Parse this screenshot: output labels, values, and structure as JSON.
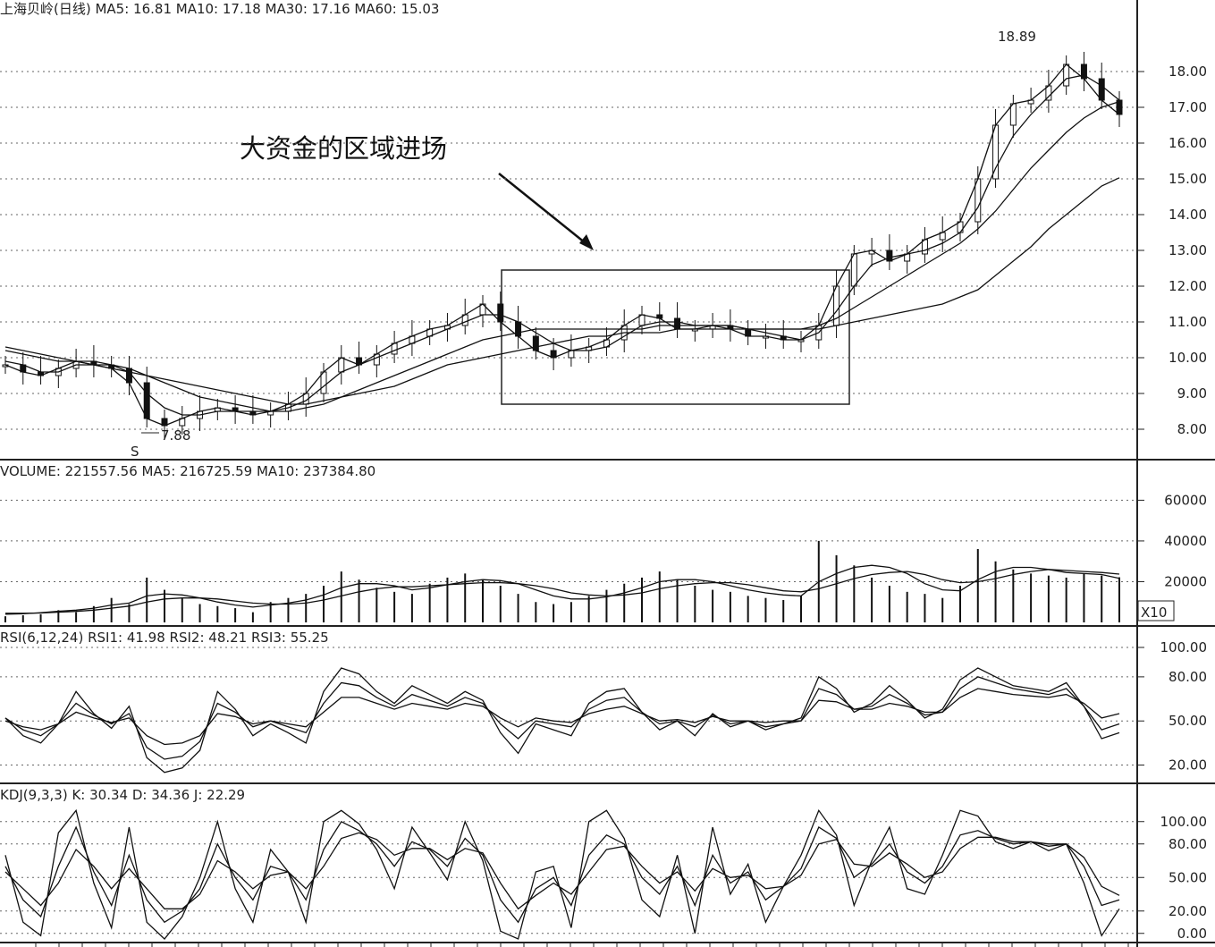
{
  "panels": {
    "price": {
      "header": "上海贝岭(日线) MA5: 16.81  MA10: 17.18  MA30: 17.16  MA60: 15.03",
      "yticks": [
        "18.00",
        "17.00",
        "16.00",
        "15.00",
        "14.00",
        "13.00",
        "12.00",
        "11.00",
        "10.00",
        "9.00",
        "8.00"
      ],
      "high_label": "18.89",
      "low_label": "7.88",
      "s_marker": "S",
      "annotation": "大资金的区域进场"
    },
    "volume": {
      "header": "VOLUME: 221557.56  MA5: 216725.59  MA10: 237384.80",
      "yticks": [
        "60000",
        "40000",
        "20000"
      ],
      "unit": "X10"
    },
    "rsi": {
      "header": "RSI(6,12,24)  RSI1: 41.98  RSI2: 48.21  RSI3: 55.25",
      "yticks": [
        "100.00",
        "80.00",
        "50.00",
        "20.00"
      ]
    },
    "kdj": {
      "header": "KDJ(9,3,3)  K: 30.34  D: 34.36  J: 22.29",
      "yticks": [
        "100.00",
        "80.00",
        "50.00",
        "20.00",
        "0.00"
      ]
    }
  },
  "chart_data": [
    {
      "type": "candlestick",
      "title": "上海贝岭(日线)",
      "ylim": [
        7.5,
        19.0
      ],
      "grid": true,
      "series": [
        {
          "name": "MA5",
          "values": [
            9.8,
            9.6,
            9.5,
            9.7,
            9.9,
            9.8,
            9.7,
            9.3,
            8.3,
            8.1,
            8.3,
            8.5,
            8.6,
            8.5,
            8.4,
            8.5,
            8.7,
            9.0,
            9.6,
            10.0,
            9.8,
            10.1,
            10.4,
            10.6,
            10.8,
            10.9,
            11.2,
            11.5,
            11.0,
            10.6,
            10.2,
            10.0,
            10.2,
            10.3,
            10.5,
            10.9,
            11.2,
            11.1,
            10.8,
            10.8,
            10.9,
            10.8,
            10.6,
            10.6,
            10.5,
            10.5,
            10.9,
            12.0,
            12.9,
            13.0,
            12.7,
            12.9,
            13.3,
            13.5,
            13.8,
            15.0,
            16.5,
            17.1,
            17.2,
            17.6,
            18.2,
            17.8,
            17.2,
            16.8
          ]
        },
        {
          "name": "MA10",
          "values": [
            9.9,
            9.8,
            9.6,
            9.6,
            9.8,
            9.8,
            9.8,
            9.6,
            9.0,
            8.6,
            8.4,
            8.4,
            8.5,
            8.5,
            8.5,
            8.5,
            8.6,
            8.8,
            9.2,
            9.6,
            9.8,
            10.0,
            10.2,
            10.4,
            10.6,
            10.8,
            11.0,
            11.2,
            11.2,
            11.0,
            10.7,
            10.4,
            10.2,
            10.2,
            10.3,
            10.6,
            10.9,
            11.0,
            11.0,
            10.9,
            10.9,
            10.9,
            10.8,
            10.7,
            10.6,
            10.5,
            10.7,
            11.3,
            12.0,
            12.6,
            12.8,
            12.9,
            13.0,
            13.2,
            13.5,
            14.2,
            15.3,
            16.2,
            16.8,
            17.3,
            17.8,
            17.9,
            17.6,
            17.2
          ]
        },
        {
          "name": "MA30",
          "values": [
            10.2,
            10.1,
            10.0,
            9.9,
            9.9,
            9.9,
            9.8,
            9.7,
            9.5,
            9.3,
            9.1,
            8.9,
            8.8,
            8.7,
            8.6,
            8.5,
            8.5,
            8.6,
            8.7,
            8.9,
            9.1,
            9.3,
            9.5,
            9.7,
            9.9,
            10.1,
            10.3,
            10.5,
            10.6,
            10.7,
            10.8,
            10.8,
            10.8,
            10.8,
            10.8,
            10.8,
            10.8,
            10.9,
            10.9,
            10.9,
            10.9,
            10.9,
            10.8,
            10.8,
            10.8,
            10.8,
            10.9,
            11.1,
            11.4,
            11.7,
            12.0,
            12.3,
            12.6,
            12.9,
            13.2,
            13.6,
            14.1,
            14.7,
            15.3,
            15.8,
            16.3,
            16.7,
            17.0,
            17.16
          ]
        },
        {
          "name": "MA60",
          "values": [
            10.3,
            10.2,
            10.1,
            10.0,
            9.9,
            9.8,
            9.7,
            9.6,
            9.5,
            9.4,
            9.3,
            9.2,
            9.1,
            9.0,
            8.9,
            8.8,
            8.7,
            8.7,
            8.8,
            8.9,
            9.0,
            9.1,
            9.2,
            9.4,
            9.6,
            9.8,
            9.9,
            10.0,
            10.1,
            10.2,
            10.3,
            10.4,
            10.5,
            10.6,
            10.6,
            10.7,
            10.7,
            10.7,
            10.8,
            10.8,
            10.8,
            10.8,
            10.8,
            10.8,
            10.8,
            10.8,
            10.8,
            10.9,
            11.0,
            11.1,
            11.2,
            11.3,
            11.4,
            11.5,
            11.7,
            11.9,
            12.3,
            12.7,
            13.1,
            13.6,
            14.0,
            14.4,
            14.8,
            15.03
          ]
        }
      ],
      "annotations": [
        "18.89",
        "7.88",
        "大资金的区域进场"
      ]
    },
    {
      "type": "bar",
      "title": "VOLUME",
      "ylim": [
        0,
        65000
      ],
      "values": [
        3000,
        3500,
        4000,
        6000,
        5000,
        8000,
        12000,
        9000,
        22000,
        16000,
        12000,
        9000,
        8000,
        7000,
        5000,
        10000,
        12000,
        14000,
        18000,
        25000,
        21000,
        17000,
        15000,
        14000,
        19000,
        22000,
        24000,
        21000,
        18000,
        14000,
        10000,
        9000,
        10000,
        13000,
        16000,
        19000,
        22000,
        25000,
        21000,
        18000,
        16000,
        15000,
        13000,
        12000,
        11000,
        13000,
        40000,
        33000,
        28000,
        22000,
        18000,
        15000,
        14000,
        12000,
        18000,
        36000,
        30000,
        26000,
        24000,
        23000,
        22000,
        24000,
        23000,
        22156
      ],
      "series": [
        {
          "name": "MA5",
          "values": [
            4000,
            4200,
            4800,
            5500,
            6000,
            7000,
            8500,
            9500,
            13000,
            14000,
            13500,
            12000,
            10000,
            8500,
            7500,
            8500,
            9500,
            11000,
            13500,
            17000,
            19000,
            19000,
            18000,
            16000,
            17000,
            18500,
            20000,
            21000,
            20500,
            19000,
            16000,
            13000,
            11500,
            11500,
            12500,
            14500,
            17000,
            20000,
            21000,
            21000,
            20000,
            18000,
            16000,
            14500,
            13500,
            13000,
            20000,
            24000,
            27000,
            28000,
            27000,
            24000,
            19000,
            16000,
            15500,
            21000,
            25000,
            27000,
            27000,
            26000,
            24500,
            24000,
            23500,
            21673
          ]
        },
        {
          "name": "MA10",
          "values": [
            4500,
            4500,
            4600,
            5000,
            5400,
            6000,
            7000,
            8000,
            10000,
            11500,
            12000,
            12000,
            11500,
            10500,
            9500,
            9000,
            9000,
            9500,
            11000,
            13000,
            15000,
            16500,
            17500,
            17500,
            18000,
            18500,
            19000,
            19500,
            19500,
            19000,
            18000,
            16500,
            14500,
            13500,
            13000,
            13500,
            14500,
            16500,
            18000,
            19000,
            19500,
            19500,
            18500,
            17000,
            15500,
            15000,
            16500,
            19000,
            21500,
            23500,
            24500,
            25000,
            23500,
            21000,
            19500,
            20000,
            21500,
            23500,
            25000,
            26000,
            25500,
            25000,
            24500,
            23738
          ]
        }
      ]
    },
    {
      "type": "line",
      "title": "RSI(6,12,24)",
      "ylim": [
        10,
        100
      ],
      "series": [
        {
          "name": "RSI1",
          "values": [
            52,
            40,
            35,
            48,
            70,
            55,
            45,
            60,
            25,
            15,
            18,
            30,
            70,
            58,
            40,
            48,
            42,
            35,
            70,
            86,
            82,
            70,
            62,
            74,
            68,
            62,
            70,
            64,
            42,
            28,
            48,
            44,
            40,
            62,
            70,
            72,
            56,
            44,
            50,
            40,
            55,
            46,
            50,
            44,
            48,
            52,
            80,
            72,
            56,
            62,
            74,
            64,
            52,
            58,
            78,
            86,
            80,
            74,
            72,
            70,
            76,
            60,
            38,
            42
          ]
        },
        {
          "name": "RSI2",
          "values": [
            52,
            44,
            40,
            48,
            62,
            54,
            48,
            55,
            32,
            24,
            26,
            36,
            62,
            56,
            46,
            50,
            46,
            42,
            62,
            76,
            74,
            66,
            60,
            68,
            64,
            60,
            66,
            62,
            48,
            38,
            50,
            48,
            46,
            58,
            64,
            66,
            56,
            48,
            50,
            46,
            54,
            48,
            50,
            46,
            48,
            50,
            72,
            68,
            58,
            60,
            68,
            62,
            54,
            56,
            72,
            80,
            76,
            72,
            70,
            68,
            72,
            60,
            44,
            48
          ]
        },
        {
          "name": "RSI3",
          "values": [
            50,
            46,
            44,
            48,
            56,
            52,
            49,
            52,
            40,
            34,
            35,
            40,
            55,
            53,
            48,
            50,
            48,
            46,
            56,
            66,
            66,
            62,
            58,
            62,
            60,
            58,
            62,
            60,
            52,
            46,
            52,
            50,
            49,
            55,
            58,
            60,
            55,
            50,
            51,
            49,
            53,
            50,
            50,
            49,
            50,
            50,
            64,
            63,
            58,
            58,
            62,
            60,
            56,
            56,
            66,
            72,
            70,
            68,
            67,
            66,
            68,
            62,
            52,
            55
          ]
        }
      ]
    },
    {
      "type": "line",
      "title": "KDJ(9,3,3)",
      "ylim": [
        -5,
        115
      ],
      "series": [
        {
          "name": "K",
          "values": [
            60,
            30,
            15,
            60,
            95,
            55,
            25,
            70,
            30,
            10,
            20,
            40,
            80,
            50,
            30,
            60,
            55,
            30,
            75,
            100,
            92,
            80,
            60,
            82,
            75,
            60,
            85,
            70,
            30,
            10,
            40,
            50,
            25,
            70,
            88,
            80,
            50,
            35,
            60,
            25,
            70,
            45,
            55,
            30,
            42,
            58,
            95,
            85,
            50,
            62,
            80,
            55,
            45,
            60,
            88,
            92,
            85,
            80,
            82,
            78,
            80,
            60,
            25,
            30
          ]
        },
        {
          "name": "D",
          "values": [
            55,
            40,
            25,
            45,
            75,
            60,
            40,
            58,
            40,
            22,
            22,
            35,
            65,
            55,
            40,
            52,
            55,
            40,
            60,
            85,
            90,
            84,
            70,
            76,
            76,
            66,
            76,
            72,
            45,
            22,
            34,
            45,
            35,
            55,
            75,
            78,
            60,
            45,
            55,
            38,
            58,
            50,
            52,
            40,
            42,
            52,
            80,
            84,
            62,
            60,
            72,
            62,
            50,
            55,
            76,
            86,
            86,
            82,
            82,
            80,
            80,
            68,
            42,
            34
          ]
        },
        {
          "name": "J",
          "values": [
            70,
            10,
            -2,
            90,
            110,
            45,
            5,
            95,
            10,
            -5,
            15,
            50,
            100,
            40,
            10,
            75,
            55,
            10,
            100,
            110,
            98,
            75,
            40,
            95,
            72,
            48,
            100,
            65,
            2,
            -5,
            55,
            60,
            5,
            100,
            110,
            85,
            30,
            15,
            70,
            0,
            95,
            35,
            62,
            10,
            42,
            70,
            110,
            88,
            25,
            65,
            95,
            40,
            35,
            70,
            110,
            105,
            82,
            76,
            82,
            74,
            80,
            45,
            -2,
            22
          ]
        }
      ]
    }
  ]
}
